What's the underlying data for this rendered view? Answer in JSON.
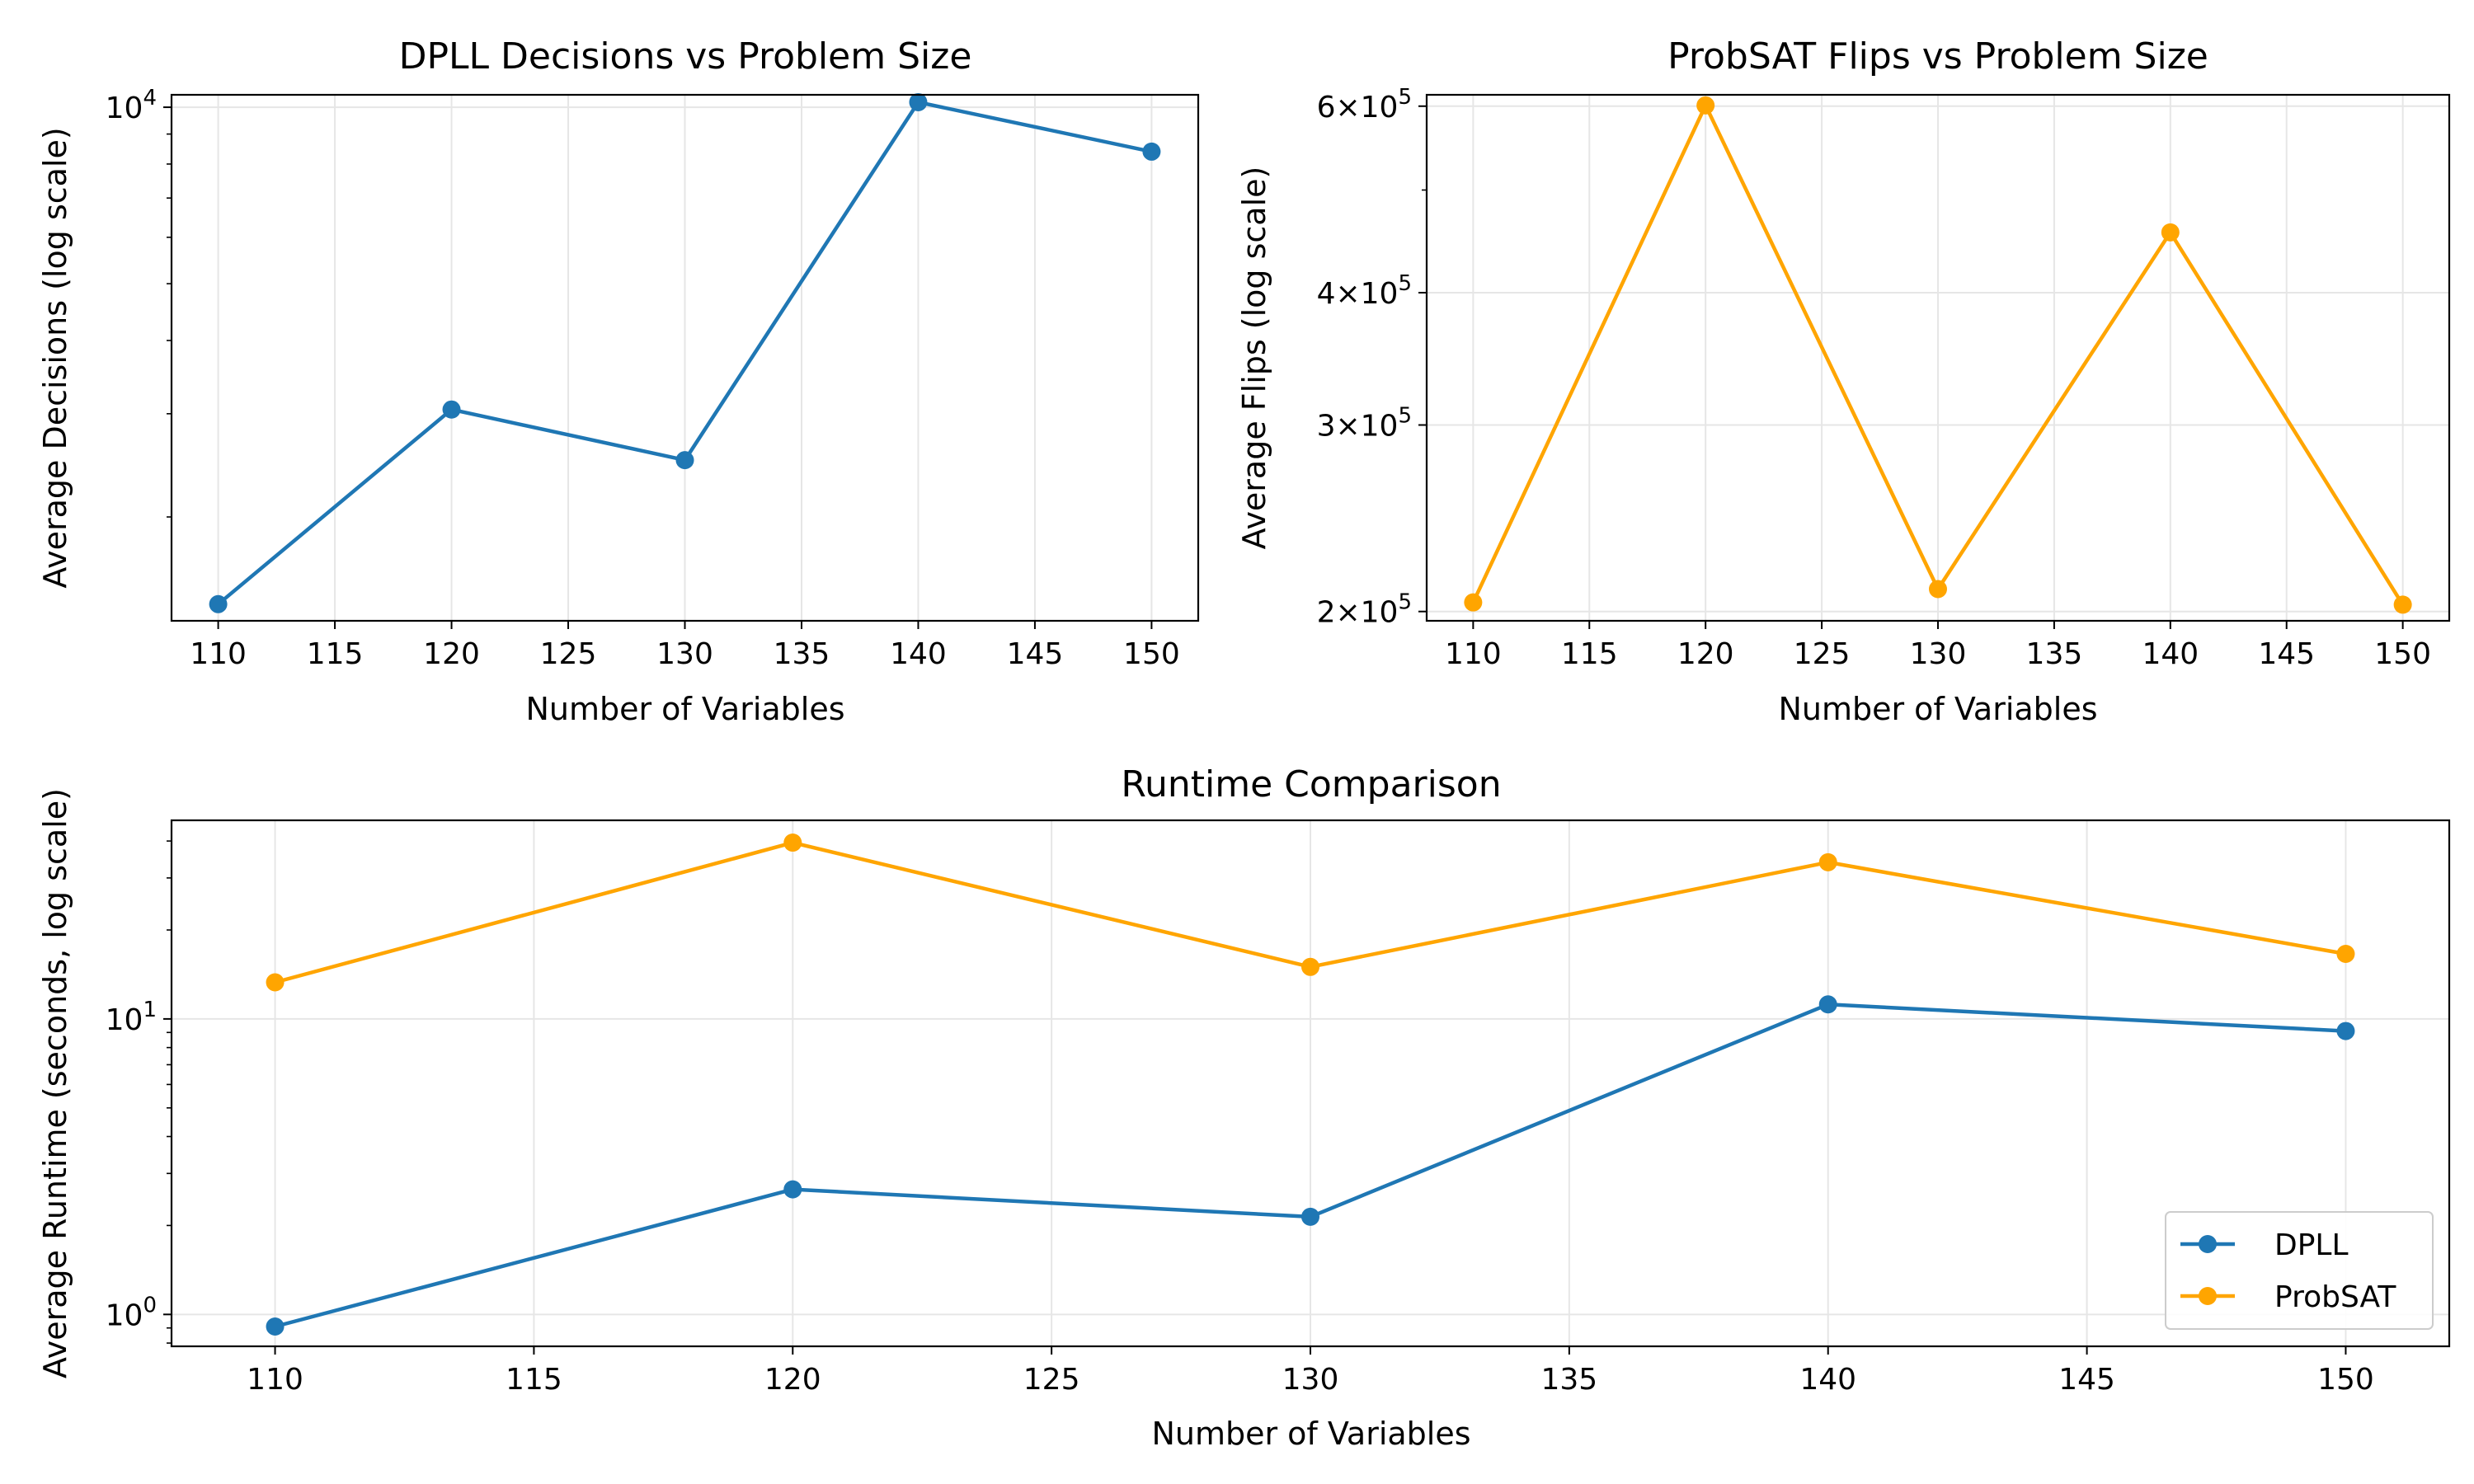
{
  "colors": {
    "dpll": "#1f77b4",
    "probsat": "#ffa500",
    "grid": "#e6e6e6",
    "axis": "#000000"
  },
  "chart_data": [
    {
      "type": "line",
      "title": "DPLL Decisions vs Problem Size",
      "xlabel": "Number of Variables",
      "ylabel": "Average Decisions (log scale)",
      "yscale": "log",
      "grid": true,
      "xlim": [
        108,
        152
      ],
      "ylim": [
        1330,
        10500
      ],
      "xticks": [
        110,
        115,
        120,
        125,
        130,
        135,
        140,
        145,
        150
      ],
      "yticks": [
        {
          "value": 10000,
          "label": "10^4"
        }
      ],
      "series": [
        {
          "color_key": "dpll",
          "x": [
            110,
            120,
            130,
            140,
            150
          ],
          "y": [
            1420,
            3050,
            2500,
            10200,
            8400
          ]
        }
      ]
    },
    {
      "type": "line",
      "title": "ProbSAT Flips vs Problem Size",
      "xlabel": "Number of Variables",
      "ylabel": "Average Flips (log scale)",
      "yscale": "log",
      "grid": true,
      "xlim": [
        108,
        152
      ],
      "ylim": [
        196000,
        615000
      ],
      "xticks": [
        110,
        115,
        120,
        125,
        130,
        135,
        140,
        145,
        150
      ],
      "yticks": [
        {
          "value": 200000,
          "label": "2×10^5"
        },
        {
          "value": 300000,
          "label": "3×10^5"
        },
        {
          "value": 400000,
          "label": "4×10^5"
        },
        {
          "value": 600000,
          "label": "6×10^5"
        }
      ],
      "series": [
        {
          "color_key": "probsat",
          "x": [
            110,
            120,
            130,
            140,
            150
          ],
          "y": [
            204000,
            601000,
            210000,
            456000,
            203000
          ]
        }
      ]
    },
    {
      "type": "line",
      "title": "Runtime Comparison",
      "xlabel": "Number of Variables",
      "ylabel": "Average Runtime (seconds, log scale)",
      "yscale": "log",
      "grid": true,
      "legend": "lower-right",
      "xlim": [
        108,
        152
      ],
      "ylim": [
        0.78,
        47
      ],
      "xticks": [
        110,
        115,
        120,
        125,
        130,
        135,
        140,
        145,
        150
      ],
      "yticks": [
        {
          "value": 1,
          "label": "10^0"
        },
        {
          "value": 10,
          "label": "10^1"
        }
      ],
      "series": [
        {
          "name": "DPLL",
          "color_key": "dpll",
          "x": [
            110,
            120,
            130,
            140,
            150
          ],
          "y": [
            0.91,
            2.65,
            2.14,
            11.2,
            9.1
          ]
        },
        {
          "name": "ProbSAT",
          "color_key": "probsat",
          "x": [
            110,
            120,
            130,
            140,
            150
          ],
          "y": [
            13.3,
            39.5,
            15.0,
            33.9,
            16.6
          ]
        }
      ]
    }
  ]
}
